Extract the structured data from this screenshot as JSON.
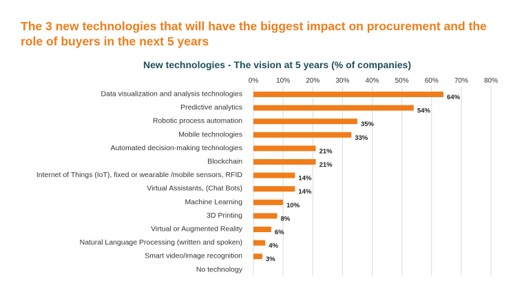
{
  "headline": "The 3 new technologies that will have the biggest impact on procurement and the role of buyers in the next 5 years",
  "chart_data": {
    "type": "bar",
    "orientation": "horizontal",
    "title": "New technologies - The vision at 5 years (% of companies)",
    "categories": [
      "Data visualization and analysis technologies",
      "Predictive analytics",
      "Robotic process automation",
      "Mobile technologies",
      "Automated decision-making technologies",
      "Blockchain",
      "Internet of Things (IoT), fixed or wearable /mobile sensors, RFID",
      "Virtual Assistants, (Chat Bots)",
      "Machine Learning",
      "3D Printing",
      "Virtual or Augmented Reality",
      "Natural Language Processing (written and spoken)",
      "Smart video/image recognition",
      "No technology"
    ],
    "values": [
      64,
      54,
      35,
      33,
      21,
      21,
      14,
      14,
      10,
      8,
      6,
      4,
      3,
      null
    ],
    "value_labels": [
      "64%",
      "54%",
      "35%",
      "33%",
      "21%",
      "21%",
      "14%",
      "14%",
      "10%",
      "8%",
      "6%",
      "4%",
      "3%",
      ""
    ],
    "xlim": [
      0,
      80
    ],
    "xticks": [
      0,
      10,
      20,
      30,
      40,
      50,
      60,
      70,
      80
    ],
    "xtick_labels": [
      "0%",
      "10%",
      "20%",
      "30%",
      "40%",
      "50%",
      "60%",
      "70%",
      "80%"
    ],
    "x_axis_position": "top",
    "grid": true,
    "bar_color": "#f07d1a"
  }
}
